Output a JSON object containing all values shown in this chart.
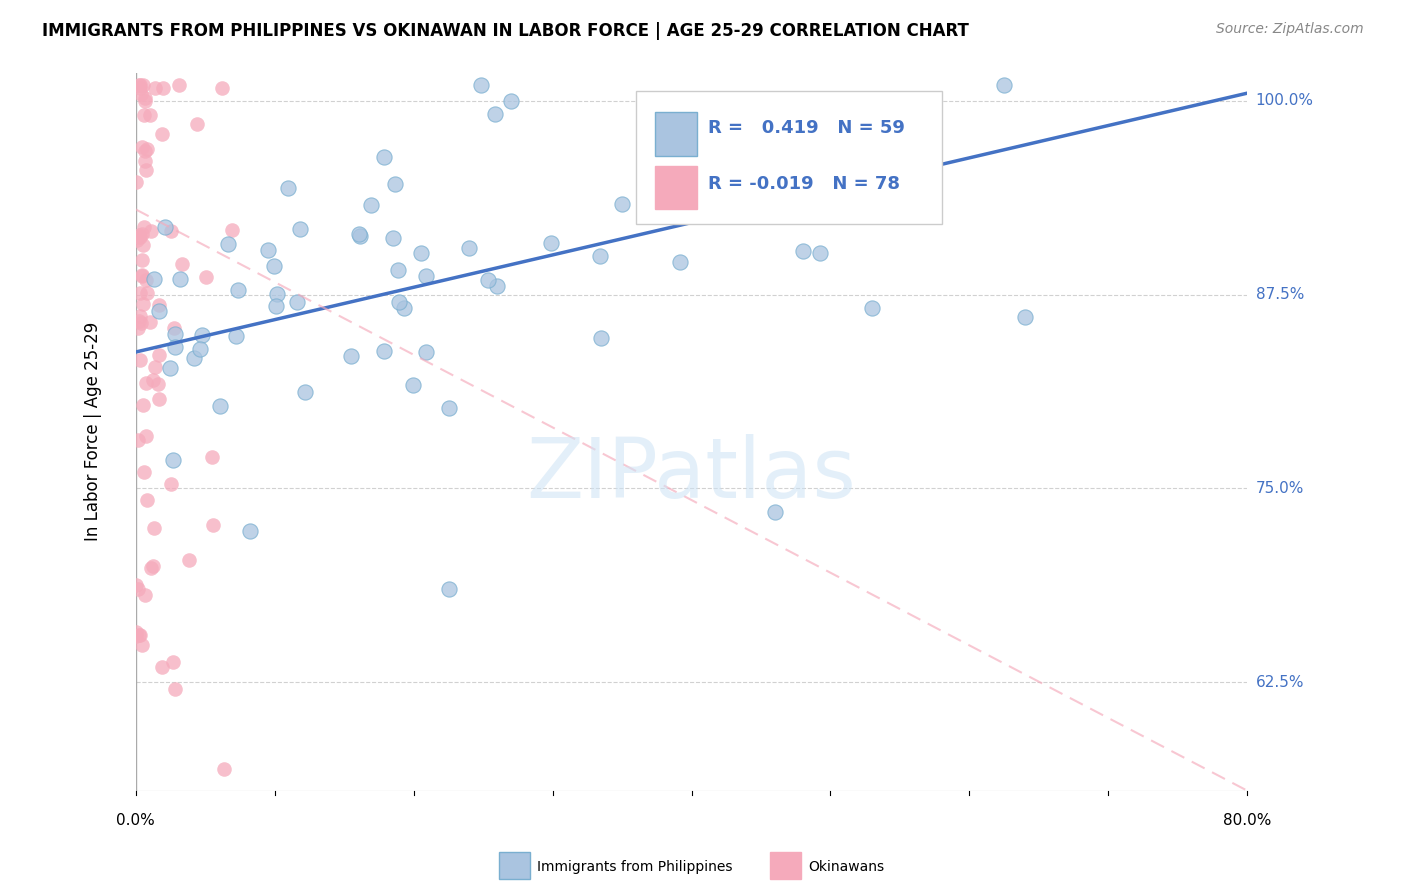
{
  "title": "IMMIGRANTS FROM PHILIPPINES VS OKINAWAN IN LABOR FORCE | AGE 25-29 CORRELATION CHART",
  "source": "Source: ZipAtlas.com",
  "ylabel": "In Labor Force | Age 25-29",
  "x_min": 0.0,
  "x_max": 0.8,
  "y_min": 0.555,
  "y_max": 1.018,
  "y_ticks": [
    0.625,
    0.75,
    0.875,
    1.0
  ],
  "y_tick_labels": [
    "62.5%",
    "75.0%",
    "87.5%",
    "100.0%"
  ],
  "legend_R_phil": "0.419",
  "legend_N_phil": "59",
  "legend_R_okin": "-0.019",
  "legend_N_okin": "78",
  "watermark": "ZIPatlas",
  "phil_color": "#aac4e0",
  "okin_color": "#f5aabb",
  "phil_edge_color": "#7aafd0",
  "okin_edge_color": "#f5aabb",
  "phil_line_color": "#4472c4",
  "okin_line_color": "#f5aabb",
  "phil_line_y0": 0.838,
  "phil_line_y1": 1.005,
  "okin_line_y0": 0.93,
  "okin_line_y1": 0.555,
  "background": "#ffffff",
  "grid_color": "#cccccc",
  "axis_color": "#aaaaaa",
  "right_label_color": "#4472c4",
  "title_fontsize": 12,
  "source_fontsize": 10,
  "label_fontsize": 11,
  "legend_fontsize": 13,
  "watermark_fontsize": 60,
  "ylabel_fontsize": 12
}
